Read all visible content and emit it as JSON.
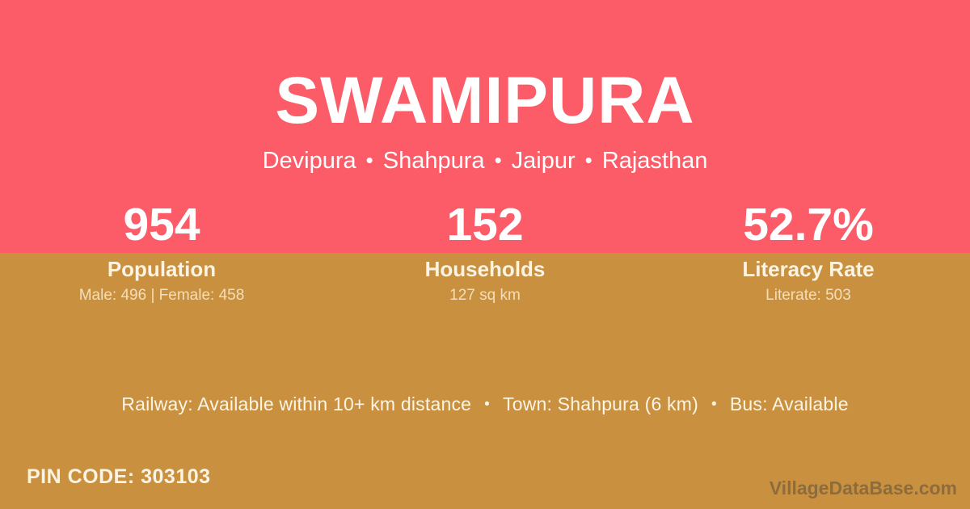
{
  "header": {
    "title": "SWAMIPURA",
    "location": [
      "Devipura",
      "Shahpura",
      "Jaipur",
      "Rajasthan"
    ],
    "separator": "•"
  },
  "stats": [
    {
      "value": "954",
      "label": "Population",
      "detail": "Male: 496 | Female: 458"
    },
    {
      "value": "152",
      "label": "Households",
      "detail": "127 sq km"
    },
    {
      "value": "52.7%",
      "label": "Literacy Rate",
      "detail": "Literate: 503"
    }
  ],
  "amenities": {
    "railway": "Railway: Available within 10+ km distance",
    "town": "Town: Shahpura (6 km)",
    "bus": "Bus: Available",
    "separator": "•"
  },
  "footer": {
    "pin_code": "PIN CODE: 303103",
    "watermark": "VillageDataBase.com"
  },
  "colors": {
    "pink": "#fb5c67",
    "gold": "#c9913f",
    "text_white": "#ffffff",
    "text_cream": "#fcf3e2"
  }
}
